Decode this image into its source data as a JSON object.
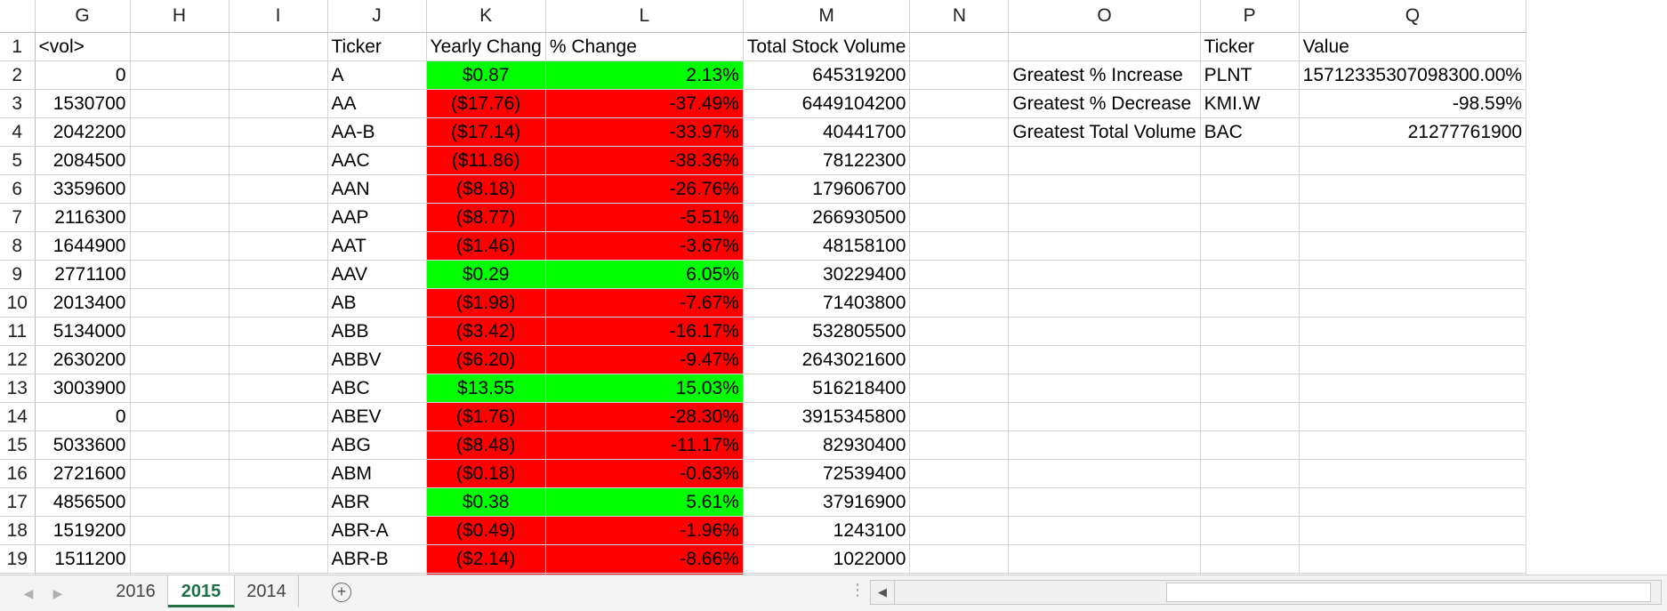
{
  "columns": [
    "G",
    "H",
    "I",
    "J",
    "K",
    "L",
    "M",
    "N",
    "O",
    "P",
    "Q"
  ],
  "header_row": {
    "row_num": "1",
    "G": "<vol>",
    "J": "Ticker",
    "K": "Yearly Chang",
    "L": "% Change",
    "M": "Total Stock Volume",
    "P": "Ticker",
    "Q": "Value"
  },
  "rows": [
    {
      "row": "2",
      "G": "0",
      "J": "A",
      "K": "$0.87",
      "L": "2.13%",
      "M": "645319200",
      "status": "green"
    },
    {
      "row": "3",
      "G": "1530700",
      "J": "AA",
      "K": "($17.76)",
      "L": "-37.49%",
      "M": "6449104200",
      "status": "red"
    },
    {
      "row": "4",
      "G": "2042200",
      "J": "AA-B",
      "K": "($17.14)",
      "L": "-33.97%",
      "M": "40441700",
      "status": "red"
    },
    {
      "row": "5",
      "G": "2084500",
      "J": "AAC",
      "K": "($11.86)",
      "L": "-38.36%",
      "M": "78122300",
      "status": "red"
    },
    {
      "row": "6",
      "G": "3359600",
      "J": "AAN",
      "K": "($8.18)",
      "L": "-26.76%",
      "M": "179606700",
      "status": "red"
    },
    {
      "row": "7",
      "G": "2116300",
      "J": "AAP",
      "K": "($8.77)",
      "L": "-5.51%",
      "M": "266930500",
      "status": "red"
    },
    {
      "row": "8",
      "G": "1644900",
      "J": "AAT",
      "K": "($1.46)",
      "L": "-3.67%",
      "M": "48158100",
      "status": "red"
    },
    {
      "row": "9",
      "G": "2771100",
      "J": "AAV",
      "K": "$0.29",
      "L": "6.05%",
      "M": "30229400",
      "status": "green"
    },
    {
      "row": "10",
      "G": "2013400",
      "J": "AB",
      "K": "($1.98)",
      "L": "-7.67%",
      "M": "71403800",
      "status": "red"
    },
    {
      "row": "11",
      "G": "5134000",
      "J": "ABB",
      "K": "($3.42)",
      "L": "-16.17%",
      "M": "532805500",
      "status": "red"
    },
    {
      "row": "12",
      "G": "2630200",
      "J": "ABBV",
      "K": "($6.20)",
      "L": "-9.47%",
      "M": "2643021600",
      "status": "red"
    },
    {
      "row": "13",
      "G": "3003900",
      "J": "ABC",
      "K": "$13.55",
      "L": "15.03%",
      "M": "516218400",
      "status": "green"
    },
    {
      "row": "14",
      "G": "0",
      "J": "ABEV",
      "K": "($1.76)",
      "L": "-28.30%",
      "M": "3915345800",
      "status": "red"
    },
    {
      "row": "15",
      "G": "5033600",
      "J": "ABG",
      "K": "($8.48)",
      "L": "-11.17%",
      "M": "82930400",
      "status": "red"
    },
    {
      "row": "16",
      "G": "2721600",
      "J": "ABM",
      "K": "($0.18)",
      "L": "-0.63%",
      "M": "72539400",
      "status": "red"
    },
    {
      "row": "17",
      "G": "4856500",
      "J": "ABR",
      "K": "$0.38",
      "L": "5.61%",
      "M": "37916900",
      "status": "green"
    },
    {
      "row": "18",
      "G": "1519200",
      "J": "ABR-A",
      "K": "($0.49)",
      "L": "-1.96%",
      "M": "1243100",
      "status": "red"
    },
    {
      "row": "19",
      "G": "1511200",
      "J": "ABR-B",
      "K": "($2.14)",
      "L": "-8.66%",
      "M": "1022000",
      "status": "red"
    }
  ],
  "summary": [
    {
      "label": "Greatest % Increase",
      "ticker": "PLNT",
      "value": "15712335307098300.00%"
    },
    {
      "label": "Greatest % Decrease",
      "ticker": "KMI.W",
      "value": "-98.59%"
    },
    {
      "label": "Greatest Total Volume",
      "ticker": "BAC",
      "value": "21277761900"
    }
  ],
  "sheet_tabs": [
    {
      "label": "2016",
      "active": false
    },
    {
      "label": "2015",
      "active": true
    },
    {
      "label": "2014",
      "active": false
    }
  ],
  "add_sheet_label": "+",
  "colors": {
    "positive": "#00ff00",
    "negative": "#ff0000",
    "active_tab": "#1e7145"
  },
  "icons": {
    "add_sheet": "plus-circle-icon",
    "scroll_left": "triangle-left-icon",
    "tab_prev": "chevron-left-icon",
    "tab_next": "chevron-right-icon"
  }
}
